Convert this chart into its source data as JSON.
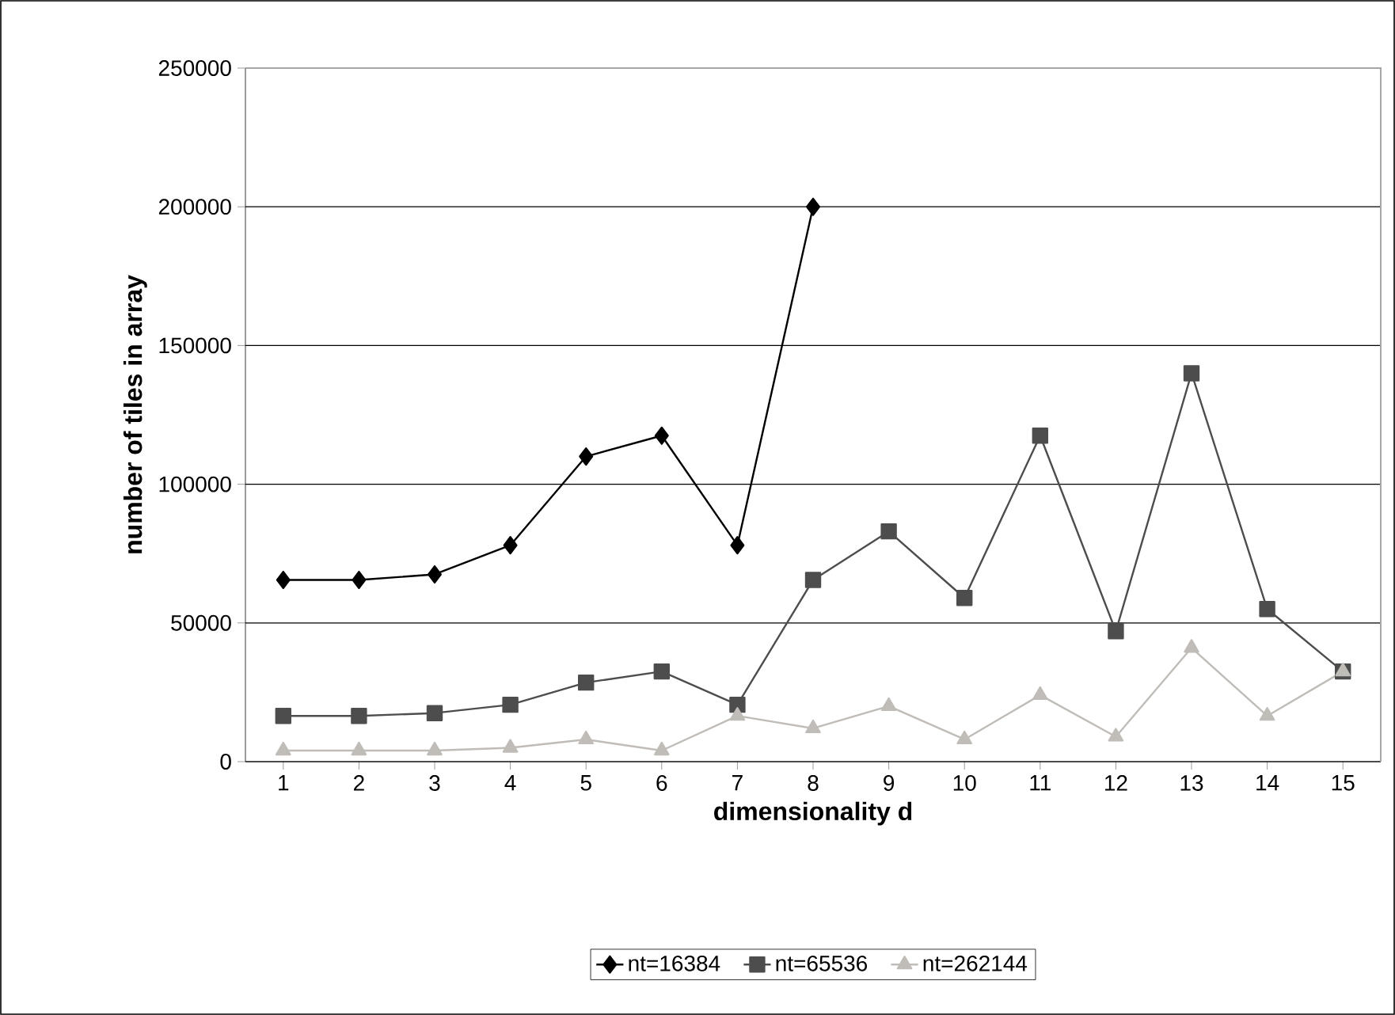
{
  "chart_data": {
    "type": "line",
    "xlabel": "dimensionality d",
    "ylabel": "number of tiles in array",
    "categories": [
      "1",
      "2",
      "3",
      "4",
      "5",
      "6",
      "7",
      "8",
      "9",
      "10",
      "11",
      "12",
      "13",
      "14",
      "15"
    ],
    "ylim": [
      0,
      250000
    ],
    "yticks": [
      0,
      50000,
      100000,
      150000,
      200000,
      250000
    ],
    "grid": "y",
    "legend": "bottom",
    "series": [
      {
        "name": "nt=16384",
        "color": "#000000",
        "marker": "diamond",
        "values": [
          65500,
          65500,
          67500,
          78000,
          110000,
          117500,
          78000,
          200000,
          null,
          null,
          null,
          null,
          null,
          null,
          null
        ]
      },
      {
        "name": "nt=65536",
        "color": "#4d4d4d",
        "marker": "square",
        "values": [
          16500,
          16500,
          17500,
          20500,
          28500,
          32500,
          20500,
          65500,
          83000,
          59000,
          117500,
          47000,
          140000,
          55000,
          32500
        ]
      },
      {
        "name": "nt=262144",
        "color": "#c0bcb8",
        "marker": "triangle",
        "values": [
          4000,
          4000,
          4000,
          5000,
          8000,
          4000,
          16500,
          12000,
          20000,
          8000,
          24000,
          9000,
          41000,
          16500,
          32500
        ]
      }
    ]
  }
}
